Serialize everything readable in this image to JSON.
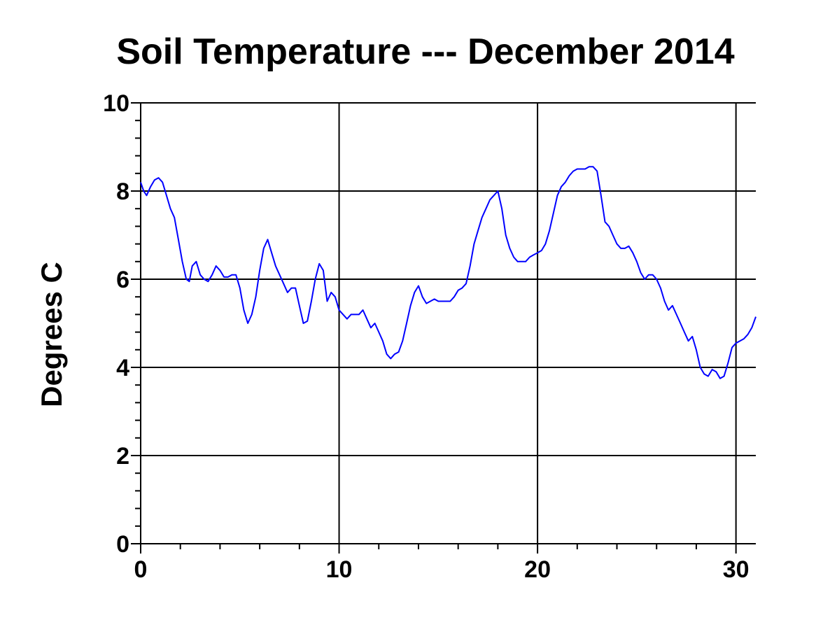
{
  "chart_data": {
    "type": "line",
    "title": "Soil Temperature --- December 2014",
    "xlabel": "",
    "ylabel": "Degrees C",
    "xlim": [
      0,
      31
    ],
    "ylim": [
      0,
      10
    ],
    "x_ticks": [
      0,
      10,
      20,
      30
    ],
    "y_ticks": [
      0,
      2,
      4,
      6,
      8,
      10
    ],
    "grid": true,
    "legend": "none",
    "series": [
      {
        "color": "#0000ff",
        "x": [
          0,
          0.15,
          0.3,
          0.5,
          0.7,
          0.9,
          1.1,
          1.3,
          1.5,
          1.7,
          1.9,
          2.1,
          2.3,
          2.45,
          2.6,
          2.8,
          3.0,
          3.2,
          3.4,
          3.6,
          3.8,
          4.0,
          4.2,
          4.4,
          4.6,
          4.8,
          5.0,
          5.2,
          5.4,
          5.6,
          5.8,
          6.0,
          6.2,
          6.4,
          6.6,
          6.8,
          7.0,
          7.2,
          7.4,
          7.6,
          7.8,
          8.0,
          8.2,
          8.4,
          8.6,
          8.8,
          9.0,
          9.2,
          9.4,
          9.6,
          9.8,
          10.0,
          10.2,
          10.4,
          10.6,
          10.8,
          11.0,
          11.2,
          11.4,
          11.6,
          11.8,
          12.0,
          12.2,
          12.4,
          12.6,
          12.8,
          13.0,
          13.2,
          13.4,
          13.6,
          13.8,
          14.0,
          14.2,
          14.4,
          14.6,
          14.8,
          15.0,
          15.2,
          15.4,
          15.6,
          15.8,
          16.0,
          16.2,
          16.4,
          16.6,
          16.8,
          17.0,
          17.2,
          17.4,
          17.6,
          17.8,
          18.0,
          18.2,
          18.4,
          18.6,
          18.8,
          19.0,
          19.2,
          19.4,
          19.6,
          19.8,
          20.0,
          20.2,
          20.4,
          20.6,
          20.8,
          21.0,
          21.2,
          21.4,
          21.6,
          21.8,
          22.0,
          22.2,
          22.4,
          22.6,
          22.8,
          23.0,
          23.2,
          23.4,
          23.6,
          23.8,
          24.0,
          24.2,
          24.4,
          24.6,
          24.8,
          25.0,
          25.2,
          25.4,
          25.6,
          25.8,
          26.0,
          26.2,
          26.4,
          26.6,
          26.8,
          27.0,
          27.2,
          27.4,
          27.6,
          27.8,
          28.0,
          28.2,
          28.4,
          28.6,
          28.8,
          29.0,
          29.2,
          29.4,
          29.6,
          29.8,
          30.0,
          30.2,
          30.4,
          30.6,
          30.8,
          31.0
        ],
        "y": [
          8.2,
          8.0,
          7.9,
          8.1,
          8.25,
          8.3,
          8.2,
          7.9,
          7.6,
          7.4,
          6.9,
          6.4,
          6.0,
          5.95,
          6.3,
          6.4,
          6.1,
          6.0,
          5.95,
          6.1,
          6.3,
          6.2,
          6.05,
          6.05,
          6.1,
          6.1,
          5.8,
          5.3,
          5.0,
          5.2,
          5.6,
          6.2,
          6.7,
          6.9,
          6.6,
          6.3,
          6.1,
          5.9,
          5.7,
          5.8,
          5.8,
          5.4,
          5.0,
          5.05,
          5.5,
          6.0,
          6.35,
          6.2,
          5.5,
          5.7,
          5.6,
          5.3,
          5.2,
          5.1,
          5.2,
          5.2,
          5.2,
          5.3,
          5.1,
          4.9,
          5.0,
          4.8,
          4.6,
          4.3,
          4.2,
          4.3,
          4.35,
          4.6,
          5.0,
          5.4,
          5.7,
          5.85,
          5.6,
          5.45,
          5.5,
          5.55,
          5.5,
          5.5,
          5.5,
          5.5,
          5.6,
          5.75,
          5.8,
          5.9,
          6.3,
          6.8,
          7.1,
          7.4,
          7.6,
          7.8,
          7.9,
          8.0,
          7.6,
          7.0,
          6.7,
          6.5,
          6.4,
          6.4,
          6.4,
          6.5,
          6.55,
          6.6,
          6.65,
          6.8,
          7.1,
          7.5,
          7.9,
          8.1,
          8.2,
          8.35,
          8.45,
          8.5,
          8.5,
          8.5,
          8.55,
          8.55,
          8.45,
          7.9,
          7.3,
          7.2,
          7.0,
          6.8,
          6.7,
          6.7,
          6.75,
          6.6,
          6.4,
          6.15,
          6.0,
          6.1,
          6.1,
          6.0,
          5.8,
          5.5,
          5.3,
          5.4,
          5.2,
          5.0,
          4.8,
          4.6,
          4.7,
          4.4,
          4.0,
          3.85,
          3.8,
          3.95,
          3.9,
          3.75,
          3.8,
          4.1,
          4.45,
          4.55,
          4.6,
          4.65,
          4.75,
          4.9,
          5.15
        ]
      }
    ]
  }
}
